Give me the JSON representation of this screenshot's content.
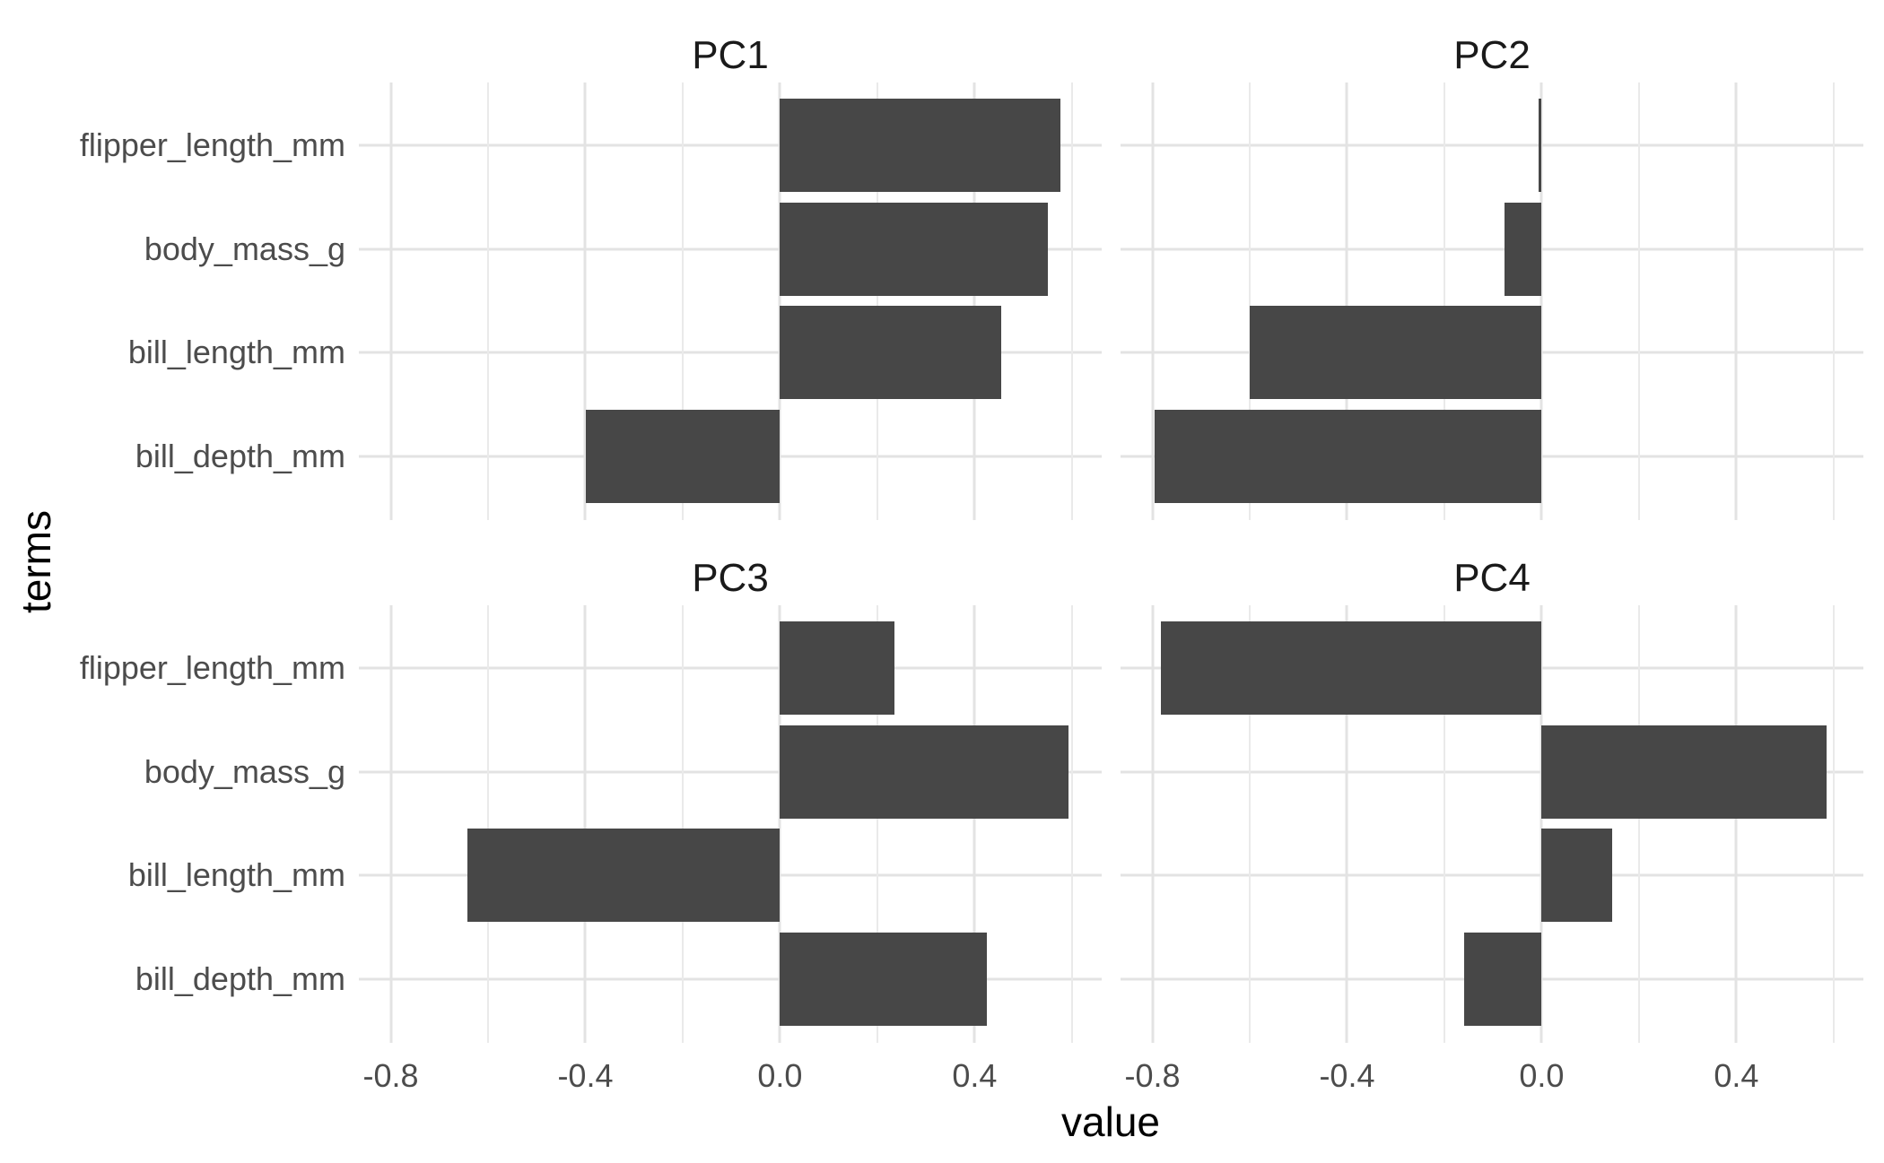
{
  "chart_data": {
    "type": "bar",
    "orientation": "horizontal",
    "xlabel": "value",
    "ylabel": "terms",
    "categories": [
      "flipper_length_mm",
      "body_mass_g",
      "bill_length_mm",
      "bill_depth_mm"
    ],
    "facets": [
      {
        "label": "PC1",
        "values": [
          0.577,
          0.55,
          0.454,
          -0.399
        ]
      },
      {
        "label": "PC2",
        "values": [
          -0.006,
          -0.076,
          -0.6,
          -0.796
        ]
      },
      {
        "label": "PC3",
        "values": [
          0.236,
          0.592,
          -0.642,
          0.426
        ]
      },
      {
        "label": "PC4",
        "values": [
          -0.782,
          0.585,
          0.145,
          -0.16
        ]
      }
    ],
    "x_major_ticks": [
      -0.8,
      -0.4,
      0,
      0.4
    ],
    "x_major_tick_labels": [
      "-0.8",
      "-0.4",
      "0.0",
      "0.4"
    ],
    "x_minor_ticks": [
      -0.6,
      -0.2,
      0.2,
      0.6
    ],
    "xlim": [
      -0.8655,
      0.6611
    ],
    "grid": true,
    "legend": "none",
    "colors": {
      "bar_fill": "#474747",
      "grid_major": "#e3e3e3",
      "grid_minor": "#eaeaea",
      "axis_text": "#4c4c4c",
      "strip_text": "#1a1a1a",
      "axis_title": "#000000",
      "background": "#ffffff"
    }
  }
}
